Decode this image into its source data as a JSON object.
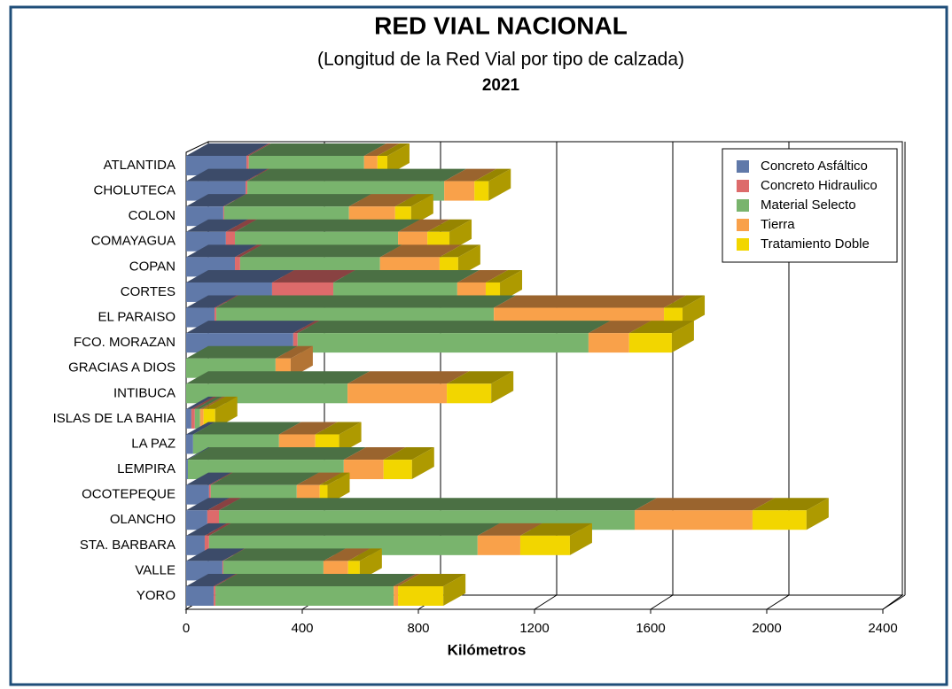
{
  "chart_data": {
    "type": "bar3d_stacked_horizontal",
    "title": "RED VIAL NACIONAL",
    "subtitle": "(Longitud de la Red Vial por tipo de calzada)",
    "year": "2021",
    "xlabel": "Kilómetros",
    "categories": [
      "ATLANTIDA",
      "CHOLUTECA",
      "COLON",
      "COMAYAGUA",
      "COPAN",
      "CORTES",
      "EL PARAISO",
      "FCO. MORAZAN",
      "GRACIAS A DIOS",
      "INTIBUCA",
      "ISLAS DE LA BAHIA",
      "LA PAZ",
      "LEMPIRA",
      "OCOTEPEQUE",
      "OLANCHO",
      "STA. BARBARA",
      "VALLE",
      "YORO"
    ],
    "series": [
      {
        "name": "Concreto Asfáltico",
        "color": "#6079a9",
        "values": [
          208,
          205,
          128,
          137,
          168,
          296,
          98,
          369,
          0,
          0,
          18,
          24,
          6,
          79,
          73,
          64,
          125,
          95
        ]
      },
      {
        "name": "Concreto Hidraulico",
        "color": "#dd6b6b",
        "values": [
          8,
          6,
          3,
          31,
          18,
          211,
          6,
          15,
          0,
          0,
          12,
          0,
          0,
          6,
          40,
          15,
          3,
          6
        ]
      },
      {
        "name": "Material Selecto",
        "color": "#79b46d",
        "values": [
          397,
          678,
          430,
          562,
          482,
          427,
          956,
          1002,
          308,
          556,
          18,
          296,
          537,
          296,
          1432,
          925,
          345,
          614
        ]
      },
      {
        "name": "Tierra",
        "color": "#f9a14a",
        "values": [
          46,
          104,
          159,
          101,
          205,
          98,
          586,
          140,
          52,
          342,
          12,
          125,
          137,
          79,
          406,
          147,
          85,
          15
        ]
      },
      {
        "name": "Tratamiento Doble",
        "color": "#f2d600",
        "values": [
          34,
          49,
          55,
          76,
          64,
          49,
          64,
          147,
          0,
          153,
          40,
          82,
          98,
          27,
          186,
          171,
          40,
          156
        ]
      }
    ],
    "xlim": [
      0,
      2400
    ],
    "xticks": [
      0,
      400,
      800,
      1200,
      1600,
      2000,
      2400
    ],
    "grid": true,
    "legend": "upper right"
  }
}
